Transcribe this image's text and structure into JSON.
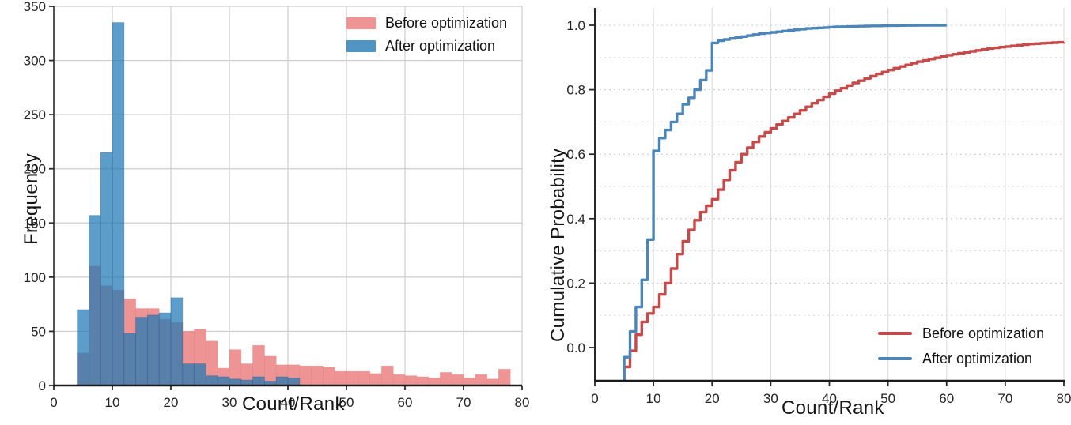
{
  "figure": {
    "background": "#ffffff"
  },
  "chart_data": [
    {
      "type": "bar",
      "subtype": "overlapping-histogram",
      "xlabel": "Count/Rank",
      "ylabel": "Frequency",
      "xlim": [
        0,
        80
      ],
      "ylim": [
        0,
        350
      ],
      "xticks": [
        0,
        10,
        20,
        30,
        40,
        50,
        60,
        70,
        80
      ],
      "yticks": [
        0,
        50,
        100,
        150,
        200,
        250,
        300,
        350
      ],
      "grid": true,
      "legend_position": "upper-right",
      "bin_start": 4,
      "bin_width": 2,
      "series": [
        {
          "name": "Before optimization",
          "color": "#ef9494",
          "edge_color": "#dd7f7f",
          "fill_opacity": 1,
          "values": [
            30,
            110,
            92,
            88,
            80,
            71,
            71,
            61,
            58,
            50,
            52,
            41,
            16,
            33,
            20,
            37,
            27,
            19,
            19,
            18,
            18,
            17,
            13,
            13,
            13,
            11,
            18,
            10,
            9,
            8,
            7,
            12,
            10,
            7,
            10,
            6,
            15
          ]
        },
        {
          "name": "After optimization",
          "color": "#1f77b4",
          "edge_color": "#2a5f94",
          "fill_opacity": 0.72,
          "values": [
            70,
            157,
            215,
            335,
            48,
            63,
            65,
            67,
            81,
            20,
            20,
            9,
            8,
            6,
            5,
            8,
            4,
            8,
            7,
            0,
            0,
            0,
            0,
            0,
            0,
            0,
            0,
            0,
            0,
            0,
            0,
            0,
            0,
            0,
            0,
            0,
            0
          ]
        }
      ]
    },
    {
      "type": "line",
      "subtype": "step-cdf",
      "xlabel": "Count/Rank",
      "ylabel": "Cumulative Probability",
      "xlim": [
        0,
        80
      ],
      "ylim": [
        -0.1,
        1.06
      ],
      "xticks": [
        0,
        10,
        20,
        30,
        40,
        50,
        60,
        70,
        80
      ],
      "yticks": [
        0.0,
        0.2,
        0.4,
        0.6,
        0.8,
        1.0
      ],
      "ytick_labels": [
        "0.0",
        "0.2",
        "0.4",
        "0.6",
        "0.8",
        "1.0"
      ],
      "grid": true,
      "legend_position": "lower-right",
      "series": [
        {
          "name": "Before optimization",
          "color": "#c64a4a",
          "x": [
            5,
            6,
            7,
            8,
            9,
            10,
            11,
            12,
            13,
            14,
            15,
            16,
            17,
            18,
            19,
            20,
            21,
            22,
            23,
            24,
            25,
            26,
            27,
            28,
            29,
            30,
            31,
            32,
            33,
            34,
            35,
            36,
            37,
            38,
            39,
            40,
            41,
            42,
            43,
            44,
            45,
            46,
            47,
            48,
            49,
            50,
            51,
            52,
            53,
            54,
            55,
            56,
            57,
            58,
            59,
            60,
            61,
            62,
            63,
            64,
            65,
            66,
            67,
            68,
            69,
            70,
            71,
            72,
            73,
            74,
            75,
            76,
            77,
            78,
            79,
            80
          ],
          "y": [
            -0.06,
            -0.01,
            0.04,
            0.08,
            0.106,
            0.126,
            0.165,
            0.2,
            0.245,
            0.29,
            0.33,
            0.365,
            0.395,
            0.42,
            0.44,
            0.46,
            0.49,
            0.52,
            0.55,
            0.575,
            0.6,
            0.62,
            0.638,
            0.655,
            0.668,
            0.68,
            0.692,
            0.703,
            0.714,
            0.725,
            0.736,
            0.747,
            0.758,
            0.768,
            0.778,
            0.788,
            0.797,
            0.805,
            0.813,
            0.821,
            0.828,
            0.835,
            0.842,
            0.849,
            0.855,
            0.861,
            0.867,
            0.872,
            0.877,
            0.882,
            0.887,
            0.891,
            0.895,
            0.899,
            0.903,
            0.907,
            0.91,
            0.913,
            0.916,
            0.919,
            0.922,
            0.925,
            0.928,
            0.93,
            0.932,
            0.934,
            0.936,
            0.938,
            0.94,
            0.942,
            0.943,
            0.944,
            0.945,
            0.946,
            0.947,
            0.948
          ]
        },
        {
          "name": "After optimization",
          "color": "#4c86b8",
          "x": [
            5,
            6,
            7,
            8,
            9,
            10,
            11,
            12,
            13,
            14,
            15,
            16,
            17,
            18,
            19,
            20,
            21,
            22,
            23,
            24,
            25,
            26,
            27,
            28,
            29,
            30,
            31,
            32,
            33,
            34,
            35,
            36,
            37,
            38,
            39,
            40,
            41,
            42,
            43,
            44,
            45,
            46,
            47,
            48,
            49,
            50,
            51,
            52,
            53,
            54,
            55,
            56,
            57,
            58,
            59,
            60
          ],
          "y": [
            -0.03,
            0.05,
            0.126,
            0.21,
            0.335,
            0.61,
            0.65,
            0.675,
            0.7,
            0.725,
            0.755,
            0.775,
            0.8,
            0.83,
            0.86,
            0.945,
            0.952,
            0.956,
            0.959,
            0.962,
            0.965,
            0.968,
            0.971,
            0.974,
            0.976,
            0.978,
            0.98,
            0.982,
            0.984,
            0.986,
            0.988,
            0.99,
            0.991,
            0.992,
            0.993,
            0.994,
            0.995,
            0.9955,
            0.996,
            0.9965,
            0.997,
            0.9975,
            0.998,
            0.998,
            0.9985,
            0.999,
            0.999,
            0.9993,
            0.9995,
            0.9996,
            0.9997,
            0.9998,
            0.9998,
            0.9999,
            1.0,
            1.0
          ]
        }
      ]
    }
  ]
}
